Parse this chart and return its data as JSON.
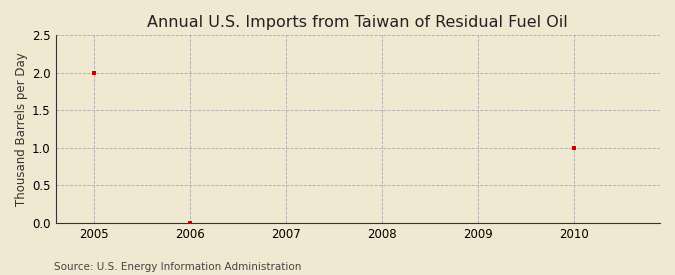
{
  "title": "Annual U.S. Imports from Taiwan of Residual Fuel Oil",
  "ylabel": "Thousand Barrels per Day",
  "source_text": "Source: U.S. Energy Information Administration",
  "outer_bg_color": "#f0e8d0",
  "plot_bg_color": "#f0e8d0",
  "xlim": [
    2004.6,
    2010.9
  ],
  "ylim": [
    0.0,
    2.5
  ],
  "yticks": [
    0.0,
    0.5,
    1.0,
    1.5,
    2.0,
    2.5
  ],
  "xticks": [
    2005,
    2006,
    2007,
    2008,
    2009,
    2010
  ],
  "data_x": [
    2005,
    2006,
    2010
  ],
  "data_y": [
    2.0,
    0.0,
    1.0
  ],
  "marker_color": "#cc0000",
  "marker": "s",
  "marker_size": 3.5,
  "grid_color": "#aaaaaa",
  "grid_linestyle": "--",
  "grid_linewidth": 0.6,
  "title_fontsize": 11.5,
  "axis_label_fontsize": 8.5,
  "tick_fontsize": 8.5,
  "source_fontsize": 7.5
}
